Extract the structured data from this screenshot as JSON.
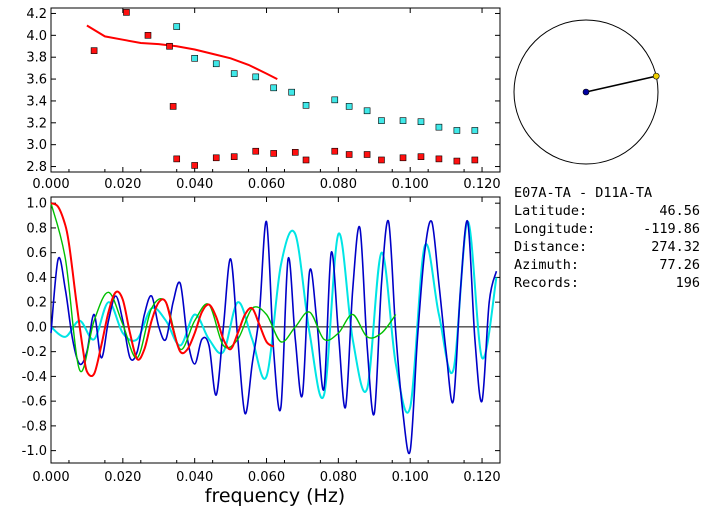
{
  "station_pair": "E07A-TA - D11A-TA",
  "info": [
    {
      "label": "Latitude:",
      "value": "46.56"
    },
    {
      "label": "Longitude:",
      "value": "-119.86"
    },
    {
      "label": "Distance:",
      "value": "274.32"
    },
    {
      "label": "Azimuth:",
      "value": "77.26"
    },
    {
      "label": "Records:",
      "value": "196"
    }
  ],
  "colors": {
    "red": "#ff0000",
    "dark_blue": "#0000c8",
    "cyan": "#00e5e5",
    "green": "#00c000",
    "marker_red": "#ff1010",
    "marker_cyan": "#40e8e8",
    "axis": "#000000"
  },
  "chart_data": [
    {
      "type": "scatter",
      "xlim": [
        0.0,
        0.125
      ],
      "ylim": [
        2.75,
        4.25
      ],
      "xticks": [
        "0.000",
        "0.020",
        "0.040",
        "0.060",
        "0.080",
        "0.100",
        "0.120"
      ],
      "yticks": [
        "2.8",
        "3.0",
        "3.2",
        "3.4",
        "3.6",
        "3.8",
        "4.0",
        "4.2"
      ],
      "series": [
        {
          "values_x": [
            0.012,
            0.021,
            0.027,
            0.033,
            0.034,
            0.035,
            0.04,
            0.046,
            0.051,
            0.057,
            0.062,
            0.068,
            0.071,
            0.079,
            0.083,
            0.088,
            0.092,
            0.098,
            0.103,
            0.108,
            0.113,
            0.118
          ],
          "values_y": [
            3.86,
            4.21,
            4.0,
            3.9,
            3.35,
            2.87,
            2.81,
            2.88,
            2.89,
            2.94,
            2.92,
            2.93,
            2.86,
            2.94,
            2.91,
            2.91,
            2.86,
            2.88,
            2.89,
            2.87,
            2.85,
            2.86
          ]
        },
        {
          "values_x": [
            0.035,
            0.04,
            0.046,
            0.051,
            0.057,
            0.062,
            0.067,
            0.071,
            0.079,
            0.083,
            0.088,
            0.092,
            0.098,
            0.103,
            0.108,
            0.113,
            0.118
          ],
          "values_y": [
            4.08,
            3.79,
            3.74,
            3.65,
            3.62,
            3.52,
            3.48,
            3.36,
            3.41,
            3.35,
            3.31,
            3.22,
            3.22,
            3.21,
            3.16,
            3.13,
            3.13
          ]
        },
        {
          "values_x": [
            0.01,
            0.015,
            0.02,
            0.025,
            0.03,
            0.035,
            0.04,
            0.045,
            0.05,
            0.055,
            0.06,
            0.063
          ],
          "values_y": [
            4.09,
            3.99,
            3.96,
            3.93,
            3.92,
            3.9,
            3.87,
            3.83,
            3.79,
            3.73,
            3.65,
            3.6
          ]
        }
      ]
    },
    {
      "type": "line",
      "xlabel": "frequency (Hz)",
      "xlim": [
        0.0,
        0.125
      ],
      "ylim": [
        -1.1,
        1.05
      ],
      "xticks": [
        "0.000",
        "0.020",
        "0.040",
        "0.060",
        "0.080",
        "0.100",
        "0.120"
      ],
      "yticks": [
        "1.0",
        "0.8",
        "0.6",
        "0.4",
        "0.2",
        "0.0",
        "-0.2",
        "-0.4",
        "-0.6",
        "-0.8",
        "-1.0"
      ],
      "series": [
        {
          "x": [
            0.0,
            0.002,
            0.004,
            0.005,
            0.006,
            0.007,
            0.008,
            0.009,
            0.01,
            0.012,
            0.014,
            0.016,
            0.018,
            0.02,
            0.022,
            0.024,
            0.026,
            0.028,
            0.03,
            0.032,
            0.034,
            0.036,
            0.038,
            0.04,
            0.042,
            0.044,
            0.046,
            0.048,
            0.05,
            0.052,
            0.054,
            0.056,
            0.058,
            0.06,
            0.062
          ],
          "y": [
            1.0,
            0.97,
            0.82,
            0.67,
            0.45,
            0.22,
            0.0,
            -0.2,
            -0.36,
            -0.38,
            -0.15,
            0.12,
            0.28,
            0.22,
            -0.05,
            -0.26,
            -0.18,
            0.05,
            0.2,
            0.2,
            -0.02,
            -0.2,
            -0.18,
            -0.05,
            0.12,
            0.18,
            0.08,
            -0.1,
            -0.18,
            -0.05,
            0.1,
            0.15,
            0.02,
            -0.12,
            -0.16
          ]
        },
        {
          "x": [
            0.0,
            0.002,
            0.004,
            0.006,
            0.008,
            0.01,
            0.012,
            0.014,
            0.016,
            0.018,
            0.02,
            0.022,
            0.024,
            0.026,
            0.028,
            0.03,
            0.032,
            0.034,
            0.036,
            0.038,
            0.04,
            0.042,
            0.044,
            0.046,
            0.048,
            0.05,
            0.052,
            0.054,
            0.056,
            0.058,
            0.06,
            0.062,
            0.064,
            0.066,
            0.068,
            0.07,
            0.072,
            0.074,
            0.076,
            0.078,
            0.08,
            0.082,
            0.084,
            0.086,
            0.088,
            0.09,
            0.092,
            0.094,
            0.096,
            0.098,
            0.1,
            0.102,
            0.104,
            0.106,
            0.108,
            0.11,
            0.112,
            0.114,
            0.116,
            0.118,
            0.12,
            0.122,
            0.124
          ],
          "y": [
            -0.05,
            0.55,
            0.3,
            -0.1,
            -0.3,
            -0.2,
            0.1,
            -0.25,
            0.05,
            0.25,
            0.05,
            -0.25,
            -0.2,
            0.1,
            0.25,
            0.0,
            -0.1,
            0.2,
            0.35,
            -0.1,
            -0.3,
            -0.1,
            -0.15,
            -0.55,
            0.0,
            0.55,
            -0.1,
            -0.7,
            -0.3,
            0.1,
            0.85,
            -0.2,
            -0.65,
            0.55,
            -0.1,
            -0.55,
            0.45,
            0.05,
            -0.5,
            0.6,
            -0.05,
            -0.65,
            0.3,
            0.8,
            -0.15,
            -0.7,
            0.35,
            0.85,
            -0.05,
            -0.7,
            -1.0,
            -0.1,
            0.6,
            0.85,
            0.35,
            -0.2,
            -0.6,
            0.3,
            0.85,
            -0.1,
            -0.6,
            0.2,
            0.45
          ]
        },
        {
          "x": [
            0.0,
            0.004,
            0.008,
            0.012,
            0.016,
            0.02,
            0.024,
            0.028,
            0.032,
            0.036,
            0.04,
            0.044,
            0.048,
            0.052,
            0.056,
            0.06,
            0.064,
            0.068,
            0.072,
            0.076,
            0.08,
            0.084,
            0.088,
            0.092,
            0.096,
            0.1,
            0.104,
            0.108,
            0.112,
            0.116,
            0.12,
            0.124
          ],
          "y": [
            0.0,
            -0.08,
            0.05,
            -0.1,
            0.2,
            -0.05,
            -0.1,
            0.15,
            0.05,
            -0.15,
            0.1,
            -0.1,
            -0.2,
            0.2,
            -0.1,
            -0.4,
            0.5,
            0.75,
            -0.05,
            -0.55,
            0.75,
            -0.1,
            -0.5,
            0.6,
            -0.3,
            -0.65,
            0.65,
            0.1,
            -0.35,
            0.85,
            -0.25,
            0.4
          ]
        },
        {
          "x": [
            0.0,
            0.004,
            0.008,
            0.012,
            0.016,
            0.02,
            0.024,
            0.028,
            0.032,
            0.036,
            0.04,
            0.044,
            0.048,
            0.052,
            0.056,
            0.06,
            0.064,
            0.068,
            0.072,
            0.076,
            0.08,
            0.084,
            0.088,
            0.092,
            0.096
          ],
          "y": [
            1.0,
            0.55,
            -0.35,
            0.05,
            0.28,
            0.02,
            -0.25,
            0.15,
            0.2,
            -0.18,
            0.05,
            0.18,
            -0.15,
            -0.1,
            0.15,
            0.1,
            -0.12,
            0.0,
            0.12,
            -0.1,
            -0.05,
            0.1,
            -0.08,
            -0.05,
            0.1
          ]
        }
      ]
    },
    {
      "type": "polar",
      "azimuth_deg": 77.26
    }
  ]
}
